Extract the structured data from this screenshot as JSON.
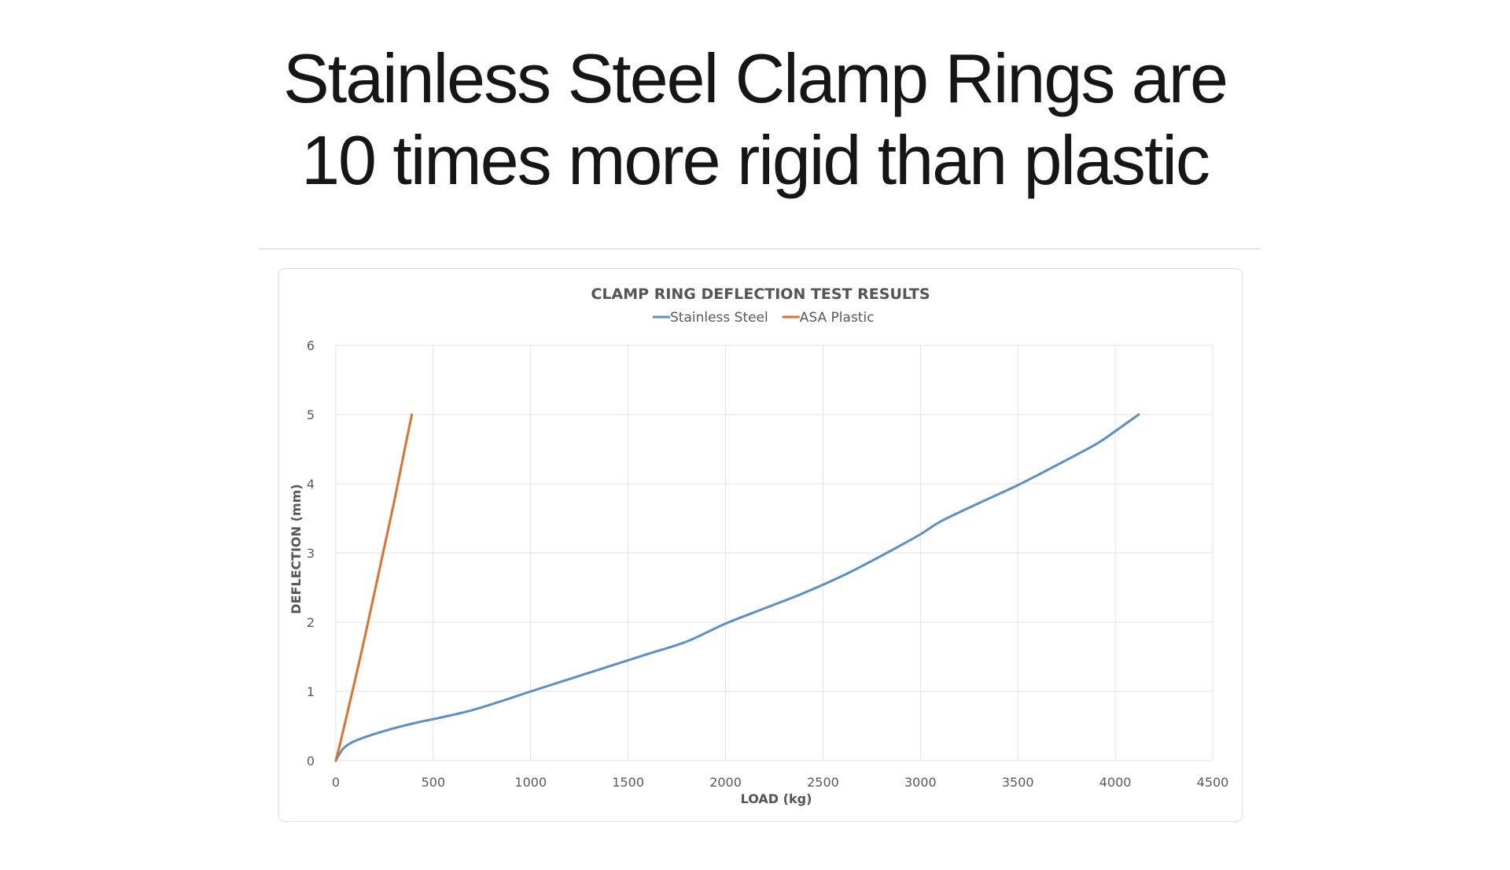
{
  "page": {
    "headline_line1": "Stainless Steel Clamp Rings are",
    "headline_line2": "10 times more rigid than plastic"
  },
  "chart_data": {
    "type": "line",
    "title": "CLAMP RING DEFLECTION  TEST RESULTS",
    "xlabel": "LOAD (kg)",
    "ylabel": "DEFLECTION (mm)",
    "xlim": [
      0,
      4500
    ],
    "ylim": [
      0,
      6
    ],
    "x_ticks": [
      0,
      500,
      1000,
      1500,
      2000,
      2500,
      3000,
      3500,
      4000,
      4500
    ],
    "y_ticks": [
      0,
      1,
      2,
      3,
      4,
      5,
      6
    ],
    "grid": true,
    "legend_position": "top",
    "series": [
      {
        "name": "Stainless Steel",
        "color": "#5b8fc9",
        "x": [
          0,
          15,
          40,
          80,
          150,
          250,
          400,
          550,
          700,
          850,
          1000,
          1200,
          1400,
          1600,
          1800,
          2000,
          2200,
          2400,
          2600,
          2800,
          3000,
          3100,
          3300,
          3500,
          3700,
          3900,
          4000,
          4120
        ],
        "y": [
          0,
          0.08,
          0.18,
          0.26,
          0.34,
          0.43,
          0.54,
          0.63,
          0.73,
          0.86,
          1.0,
          1.18,
          1.36,
          1.54,
          1.72,
          1.98,
          2.2,
          2.42,
          2.67,
          2.96,
          3.27,
          3.45,
          3.72,
          3.98,
          4.27,
          4.57,
          4.76,
          5.0
        ]
      },
      {
        "name": "ASA Plastic",
        "color": "#e0702a",
        "x": [
          0,
          25,
          50,
          75,
          100,
          150,
          200,
          250,
          300,
          350,
          390
        ],
        "y": [
          0,
          0.28,
          0.58,
          0.88,
          1.18,
          1.8,
          2.45,
          3.1,
          3.75,
          4.45,
          5.0
        ]
      }
    ]
  }
}
